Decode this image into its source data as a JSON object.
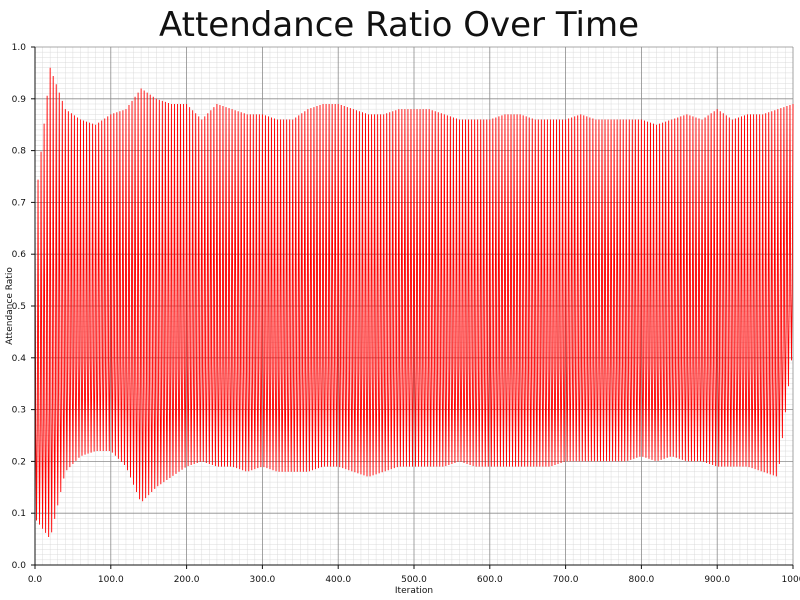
{
  "chart_data": {
    "type": "line",
    "title": "Attendance Ratio Over Time",
    "xlabel": "Iteration",
    "ylabel": "Attendance Ratio",
    "xlim": [
      0,
      1000
    ],
    "ylim": [
      0,
      1
    ],
    "grid": true,
    "legend": "none",
    "x_ticks": [
      "0.0",
      "100.0",
      "200.0",
      "300.0",
      "400.0",
      "500.0",
      "600.0",
      "700.0",
      "800.0",
      "900.0",
      "1000"
    ],
    "y_ticks": [
      "0.0",
      "0.1",
      "0.2",
      "0.3",
      "0.4",
      "0.5",
      "0.6",
      "0.7",
      "0.8",
      "0.9",
      "1.0"
    ],
    "series": [
      {
        "color": "#ff0000",
        "x": [
          0,
          20,
          40,
          60,
          80,
          100,
          120,
          140,
          160,
          180,
          200,
          220,
          240,
          260,
          280,
          300,
          320,
          340,
          360,
          380,
          400,
          420,
          440,
          460,
          480,
          500,
          520,
          540,
          560,
          580,
          600,
          620,
          640,
          660,
          680,
          700,
          720,
          740,
          760,
          780,
          800,
          820,
          840,
          860,
          880,
          900,
          920,
          940,
          960,
          980,
          1000
        ],
        "upper": [
          0.69,
          0.96,
          0.88,
          0.86,
          0.85,
          0.87,
          0.88,
          0.92,
          0.9,
          0.89,
          0.89,
          0.86,
          0.89,
          0.88,
          0.87,
          0.87,
          0.86,
          0.86,
          0.88,
          0.89,
          0.89,
          0.88,
          0.87,
          0.87,
          0.88,
          0.88,
          0.88,
          0.87,
          0.86,
          0.86,
          0.86,
          0.87,
          0.87,
          0.86,
          0.86,
          0.86,
          0.87,
          0.86,
          0.86,
          0.86,
          0.86,
          0.85,
          0.86,
          0.87,
          0.86,
          0.88,
          0.86,
          0.87,
          0.87,
          0.88,
          0.89
        ],
        "lower": [
          0.09,
          0.05,
          0.18,
          0.21,
          0.22,
          0.22,
          0.19,
          0.12,
          0.15,
          0.17,
          0.19,
          0.2,
          0.19,
          0.19,
          0.18,
          0.19,
          0.18,
          0.18,
          0.18,
          0.19,
          0.19,
          0.18,
          0.17,
          0.18,
          0.19,
          0.19,
          0.19,
          0.19,
          0.2,
          0.19,
          0.19,
          0.19,
          0.19,
          0.19,
          0.19,
          0.2,
          0.2,
          0.2,
          0.2,
          0.2,
          0.21,
          0.2,
          0.21,
          0.2,
          0.2,
          0.19,
          0.19,
          0.19,
          0.18,
          0.17,
          0.42
        ],
        "oscillation_period": 4
      }
    ]
  }
}
